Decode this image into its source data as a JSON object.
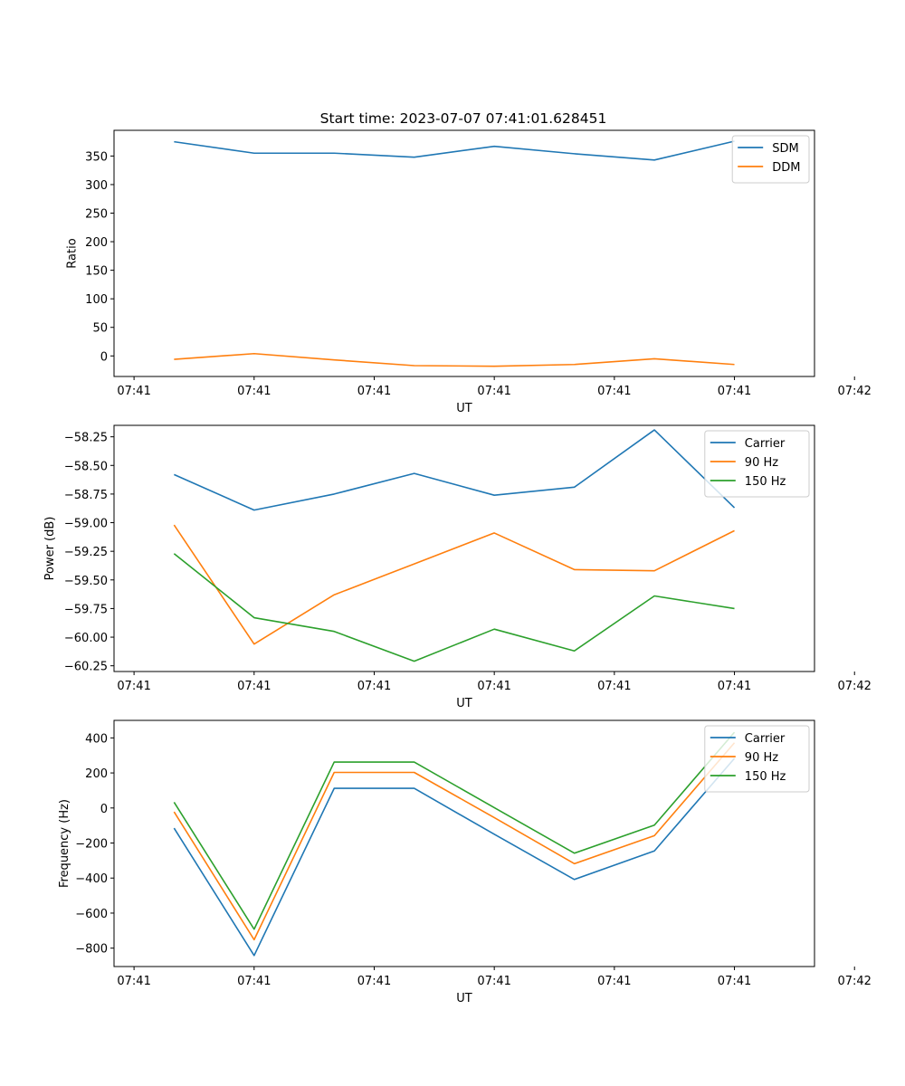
{
  "chart_data": [
    {
      "type": "line",
      "title": "Start time: 2023-07-07 07:41:01.628451",
      "xlabel": "UT",
      "ylabel": "Ratio",
      "x": [
        1,
        2,
        3,
        4,
        5,
        6,
        7,
        8
      ],
      "xlim": [
        0.25,
        9.0
      ],
      "xticks": [
        0.5,
        2,
        3.5,
        5,
        6.5,
        8,
        9.5
      ],
      "xtick_labels": [
        "07:41",
        "07:41",
        "07:41",
        "07:41",
        "07:41",
        "07:41",
        "07:42"
      ],
      "ylim": [
        -36,
        395
      ],
      "yticks": [
        0,
        50,
        100,
        150,
        200,
        250,
        300,
        350
      ],
      "ytick_labels": [
        "0",
        "50",
        "100",
        "150",
        "200",
        "250",
        "300",
        "350"
      ],
      "legend": "top-right",
      "series": [
        {
          "name": "SDM",
          "color": "#1f77b4",
          "values": [
            375,
            355,
            355,
            348,
            367,
            354,
            343,
            376
          ]
        },
        {
          "name": "DDM",
          "color": "#ff7f0e",
          "values": [
            -6,
            4,
            -7,
            -17,
            -18,
            -15,
            -5,
            -15
          ]
        }
      ]
    },
    {
      "type": "line",
      "title": "",
      "xlabel": "UT",
      "ylabel": "Power (dB)",
      "x": [
        1,
        2,
        3,
        4,
        5,
        6,
        7,
        8
      ],
      "xlim": [
        0.25,
        9.0
      ],
      "xticks": [
        0.5,
        2,
        3.5,
        5,
        6.5,
        8,
        9.5
      ],
      "xtick_labels": [
        "07:41",
        "07:41",
        "07:41",
        "07:41",
        "07:41",
        "07:41",
        "07:42"
      ],
      "ylim": [
        -60.3,
        -58.15
      ],
      "yticks": [
        -60.25,
        -60.0,
        -59.75,
        -59.5,
        -59.25,
        -59.0,
        -58.75,
        -58.5,
        -58.25
      ],
      "ytick_labels": [
        "−60.25",
        "−60.00",
        "−59.75",
        "−59.50",
        "−59.25",
        "−59.00",
        "−58.75",
        "−58.50",
        "−58.25"
      ],
      "legend": "top-right",
      "series": [
        {
          "name": "Carrier",
          "color": "#1f77b4",
          "values": [
            -58.58,
            -58.89,
            -58.75,
            -58.57,
            -58.76,
            -58.69,
            -58.19,
            -58.87
          ]
        },
        {
          "name": "90 Hz",
          "color": "#ff7f0e",
          "values": [
            -59.02,
            -60.06,
            -59.63,
            -59.36,
            -59.09,
            -59.41,
            -59.42,
            -59.07
          ]
        },
        {
          "name": "150 Hz",
          "color": "#2ca02c",
          "values": [
            -59.27,
            -59.83,
            -59.95,
            -60.21,
            -59.93,
            -60.12,
            -59.64,
            -59.75
          ]
        }
      ]
    },
    {
      "type": "line",
      "title": "",
      "xlabel": "UT",
      "ylabel": "Frequency (Hz)",
      "x": [
        1,
        2,
        3,
        4,
        5,
        6,
        7,
        8
      ],
      "xlim": [
        0.25,
        9.0
      ],
      "xticks": [
        0.5,
        2,
        3.5,
        5,
        6.5,
        8,
        9.5
      ],
      "xtick_labels": [
        "07:41",
        "07:41",
        "07:41",
        "07:41",
        "07:41",
        "07:41",
        "07:42"
      ],
      "ylim": [
        -905,
        500
      ],
      "yticks": [
        -800,
        -600,
        -400,
        -200,
        0,
        200,
        400
      ],
      "ytick_labels": [
        "−800",
        "−600",
        "−400",
        "−200",
        "0",
        "200",
        "400"
      ],
      "legend": "top-right",
      "series": [
        {
          "name": "Carrier",
          "color": "#1f77b4",
          "values": [
            -115,
            -842,
            112,
            112,
            -150,
            -408,
            -245,
            283
          ]
        },
        {
          "name": "90 Hz",
          "color": "#ff7f0e",
          "values": [
            -22,
            -752,
            203,
            203,
            -55,
            -318,
            -158,
            372
          ]
        },
        {
          "name": "150 Hz",
          "color": "#2ca02c",
          "values": [
            33,
            -692,
            262,
            262,
            2,
            -258,
            -98,
            432
          ]
        }
      ]
    }
  ]
}
